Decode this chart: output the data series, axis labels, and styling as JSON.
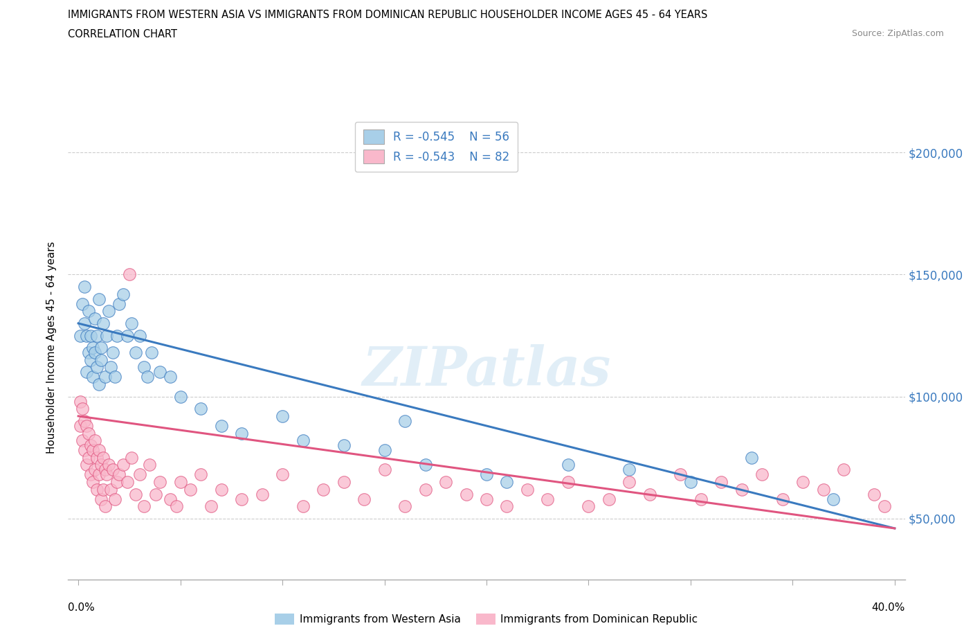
{
  "title_line1": "IMMIGRANTS FROM WESTERN ASIA VS IMMIGRANTS FROM DOMINICAN REPUBLIC HOUSEHOLDER INCOME AGES 45 - 64 YEARS",
  "title_line2": "CORRELATION CHART",
  "source_text": "Source: ZipAtlas.com",
  "ylabel": "Householder Income Ages 45 - 64 years",
  "xlim": [
    -0.005,
    0.405
  ],
  "ylim": [
    25000,
    215000
  ],
  "watermark_text": "ZIPatlas",
  "color_blue": "#a8cfe8",
  "color_pink": "#f9b8cb",
  "line_blue": "#3a7abf",
  "line_pink": "#e05580",
  "ytick_labels": [
    "$200,000",
    "$150,000",
    "$100,000",
    "$50,000"
  ],
  "ytick_values": [
    200000,
    150000,
    100000,
    50000
  ],
  "blue_intercept": 130000,
  "blue_slope": -210000,
  "pink_intercept": 92000,
  "pink_slope": -115000,
  "blue_x": [
    0.001,
    0.002,
    0.003,
    0.003,
    0.004,
    0.004,
    0.005,
    0.005,
    0.006,
    0.006,
    0.007,
    0.007,
    0.008,
    0.008,
    0.009,
    0.009,
    0.01,
    0.01,
    0.011,
    0.011,
    0.012,
    0.013,
    0.014,
    0.015,
    0.016,
    0.017,
    0.018,
    0.019,
    0.02,
    0.022,
    0.024,
    0.026,
    0.028,
    0.03,
    0.032,
    0.034,
    0.036,
    0.04,
    0.045,
    0.05,
    0.06,
    0.07,
    0.08,
    0.1,
    0.11,
    0.13,
    0.15,
    0.16,
    0.17,
    0.2,
    0.21,
    0.24,
    0.27,
    0.3,
    0.33,
    0.37
  ],
  "blue_y": [
    125000,
    138000,
    130000,
    145000,
    110000,
    125000,
    118000,
    135000,
    125000,
    115000,
    120000,
    108000,
    118000,
    132000,
    112000,
    125000,
    140000,
    105000,
    120000,
    115000,
    130000,
    108000,
    125000,
    135000,
    112000,
    118000,
    108000,
    125000,
    138000,
    142000,
    125000,
    130000,
    118000,
    125000,
    112000,
    108000,
    118000,
    110000,
    108000,
    100000,
    95000,
    88000,
    85000,
    92000,
    82000,
    80000,
    78000,
    90000,
    72000,
    68000,
    65000,
    72000,
    70000,
    65000,
    75000,
    58000
  ],
  "pink_x": [
    0.001,
    0.001,
    0.002,
    0.002,
    0.003,
    0.003,
    0.004,
    0.004,
    0.005,
    0.005,
    0.006,
    0.006,
    0.007,
    0.007,
    0.008,
    0.008,
    0.009,
    0.009,
    0.01,
    0.01,
    0.011,
    0.011,
    0.012,
    0.012,
    0.013,
    0.013,
    0.014,
    0.015,
    0.016,
    0.017,
    0.018,
    0.019,
    0.02,
    0.022,
    0.024,
    0.026,
    0.028,
    0.03,
    0.032,
    0.035,
    0.038,
    0.04,
    0.045,
    0.05,
    0.055,
    0.06,
    0.065,
    0.07,
    0.08,
    0.09,
    0.1,
    0.11,
    0.12,
    0.13,
    0.14,
    0.15,
    0.16,
    0.17,
    0.18,
    0.19,
    0.2,
    0.21,
    0.22,
    0.23,
    0.24,
    0.25,
    0.26,
    0.27,
    0.28,
    0.295,
    0.305,
    0.315,
    0.325,
    0.335,
    0.345,
    0.355,
    0.365,
    0.375,
    0.39,
    0.395,
    0.025,
    0.048
  ],
  "pink_y": [
    98000,
    88000,
    95000,
    82000,
    90000,
    78000,
    88000,
    72000,
    85000,
    75000,
    80000,
    68000,
    78000,
    65000,
    82000,
    70000,
    75000,
    62000,
    78000,
    68000,
    72000,
    58000,
    75000,
    62000,
    70000,
    55000,
    68000,
    72000,
    62000,
    70000,
    58000,
    65000,
    68000,
    72000,
    65000,
    75000,
    60000,
    68000,
    55000,
    72000,
    60000,
    65000,
    58000,
    65000,
    62000,
    68000,
    55000,
    62000,
    58000,
    60000,
    68000,
    55000,
    62000,
    65000,
    58000,
    70000,
    55000,
    62000,
    65000,
    60000,
    58000,
    55000,
    62000,
    58000,
    65000,
    55000,
    58000,
    65000,
    60000,
    68000,
    58000,
    65000,
    62000,
    68000,
    58000,
    65000,
    62000,
    70000,
    60000,
    55000,
    150000,
    55000
  ]
}
